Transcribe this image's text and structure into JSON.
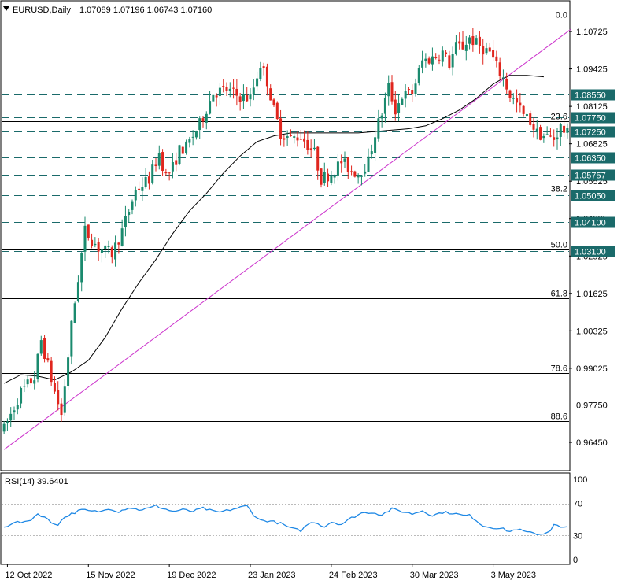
{
  "header": {
    "symbol": "EURUSD,Daily",
    "ohlc": "1.07089 1.07196 1.06743 1.07160"
  },
  "colors": {
    "bull": "#1a8a6e",
    "bear": "#e0261e",
    "ma": "#000000",
    "trendline": "#cc33cc",
    "dash_level": "#1a6a6a",
    "fib": "#000000",
    "rsi": "#1e88e5",
    "label_bg": "#1a6a6a",
    "label_text": "#ffffff"
  },
  "icons": {
    "symbol_toggle": "triangle-down-icon"
  },
  "chart_data": [
    {
      "type": "candlestick",
      "name": "EURUSD,Daily",
      "title": "EURUSD,Daily",
      "ylim": [
        0.96,
        1.1115
      ],
      "price_ticks": [
        "1.10725",
        "1.09425",
        "1.08125",
        "1.06825",
        "1.05525",
        "1.04225",
        "1.02925",
        "1.01625",
        "1.00325",
        "0.99025",
        "0.97750",
        "0.96450"
      ],
      "price_tick_values": [
        1.10725,
        1.09425,
        1.08125,
        1.06825,
        1.05525,
        1.04225,
        1.02925,
        1.01625,
        1.00325,
        0.99025,
        0.9775,
        0.9645
      ],
      "x_labels": [
        "12 Oct 2022",
        "15 Nov 2022",
        "19 Dec 2022",
        "23 Jan 2023",
        "24 Feb 2023",
        "30 Mar 2023",
        "3 May 2023"
      ],
      "x_label_bars": [
        1,
        25,
        49,
        73,
        97,
        121,
        145
      ],
      "bar_count": 168,
      "price_path": [
        [
          0,
          0.969
        ],
        [
          5,
          0.982
        ],
        [
          9,
          0.987
        ],
        [
          11,
          1.0
        ],
        [
          15,
          0.982
        ],
        [
          17,
          0.974
        ],
        [
          20,
          1.005
        ],
        [
          24,
          1.038
        ],
        [
          28,
          1.032
        ],
        [
          32,
          1.03
        ],
        [
          35,
          1.038
        ],
        [
          39,
          1.052
        ],
        [
          43,
          1.056
        ],
        [
          46,
          1.065
        ],
        [
          48,
          1.057
        ],
        [
          50,
          1.06
        ],
        [
          52,
          1.066
        ],
        [
          54,
          1.067
        ],
        [
          58,
          1.075
        ],
        [
          62,
          1.086
        ],
        [
          66,
          1.087
        ],
        [
          69,
          1.085
        ],
        [
          73,
          1.084
        ],
        [
          76,
          1.096
        ],
        [
          78,
          1.09
        ],
        [
          80,
          1.08
        ],
        [
          82,
          1.072
        ],
        [
          85,
          1.07
        ],
        [
          88,
          1.071
        ],
        [
          92,
          1.065
        ],
        [
          94,
          1.056
        ],
        [
          97,
          1.058
        ],
        [
          100,
          1.062
        ],
        [
          103,
          1.059
        ],
        [
          105,
          1.058
        ],
        [
          108,
          1.062
        ],
        [
          110,
          1.072
        ],
        [
          112,
          1.079
        ],
        [
          114,
          1.088
        ],
        [
          116,
          1.08
        ],
        [
          118,
          1.085
        ],
        [
          121,
          1.086
        ],
        [
          124,
          1.097
        ],
        [
          127,
          1.098
        ],
        [
          130,
          1.1
        ],
        [
          132,
          1.096
        ],
        [
          134,
          1.102
        ],
        [
          136,
          1.102
        ],
        [
          138,
          1.105
        ],
        [
          141,
          1.102
        ],
        [
          144,
          1.1
        ],
        [
          146,
          1.095
        ],
        [
          148,
          1.091
        ],
        [
          150,
          1.085
        ],
        [
          152,
          1.082
        ],
        [
          154,
          1.078
        ],
        [
          156,
          1.076
        ],
        [
          158,
          1.072
        ],
        [
          160,
          1.071
        ],
        [
          163,
          1.07
        ],
        [
          165,
          1.074
        ],
        [
          167,
          1.0716
        ]
      ],
      "sma": [
        [
          0,
          0.985
        ],
        [
          5,
          0.988
        ],
        [
          10,
          0.9875
        ],
        [
          15,
          0.9862
        ],
        [
          20,
          0.989
        ],
        [
          25,
          0.993
        ],
        [
          30,
          1.001
        ],
        [
          35,
          1.011
        ],
        [
          40,
          1.02
        ],
        [
          45,
          1.028
        ],
        [
          50,
          1.037
        ],
        [
          55,
          1.045
        ],
        [
          60,
          1.051
        ],
        [
          65,
          1.058
        ],
        [
          70,
          1.064
        ],
        [
          75,
          1.069
        ],
        [
          80,
          1.071
        ],
        [
          85,
          1.072
        ],
        [
          90,
          1.072
        ],
        [
          95,
          1.072
        ],
        [
          100,
          1.072
        ],
        [
          105,
          1.072
        ],
        [
          110,
          1.0725
        ],
        [
          115,
          1.073
        ],
        [
          120,
          1.0735
        ],
        [
          125,
          1.0745
        ],
        [
          130,
          1.077
        ],
        [
          135,
          1.08
        ],
        [
          140,
          1.084
        ],
        [
          145,
          1.089
        ],
        [
          148,
          1.091
        ],
        [
          150,
          1.092
        ],
        [
          155,
          1.092
        ],
        [
          160,
          1.0915
        ]
      ],
      "trendline": {
        "start": [
          0,
          0.962
        ],
        "end": [
          168,
          1.108
        ]
      },
      "levels": [
        {
          "price": 1.0855,
          "label": "1.08550"
        },
        {
          "price": 1.0775,
          "label": "1.07750"
        },
        {
          "price": 1.0725,
          "label": "1.07250"
        },
        {
          "price": 1.0635,
          "label": "1.06350"
        },
        {
          "price": 1.05757,
          "label": "1.05757"
        },
        {
          "price": 1.0505,
          "label": "1.05050"
        },
        {
          "price": 1.041,
          "label": "1.04100"
        },
        {
          "price": 1.031,
          "label": "1.03100"
        }
      ],
      "fib_levels": [
        {
          "label": "0.0",
          "price": 1.1115
        },
        {
          "label": "23.6",
          "price": 1.076
        },
        {
          "label": "38.2",
          "price": 1.051
        },
        {
          "label": "50.0",
          "price": 1.0315
        },
        {
          "label": "61.8",
          "price": 1.0145
        },
        {
          "label": "78.6",
          "price": 0.9885
        },
        {
          "label": "88.6",
          "price": 0.972
        }
      ]
    },
    {
      "type": "line",
      "name": "RSI(14)",
      "title": "RSI(14) 39.6401",
      "value_label": "RSI(14) 39.6401",
      "ylim": [
        0,
        100
      ],
      "ticks": [
        "100",
        "70",
        "30",
        "0"
      ],
      "tick_values": [
        100,
        70,
        30,
        0
      ],
      "ref_lines": [
        70,
        30
      ],
      "values_path": [
        [
          0,
          40
        ],
        [
          3,
          47
        ],
        [
          6,
          46
        ],
        [
          8,
          50
        ],
        [
          10,
          57
        ],
        [
          12,
          53
        ],
        [
          14,
          46
        ],
        [
          16,
          44
        ],
        [
          18,
          53
        ],
        [
          20,
          57
        ],
        [
          23,
          62
        ],
        [
          26,
          60
        ],
        [
          29,
          60
        ],
        [
          31,
          64
        ],
        [
          34,
          60
        ],
        [
          37,
          65
        ],
        [
          40,
          62
        ],
        [
          43,
          64
        ],
        [
          45,
          67
        ],
        [
          47,
          64
        ],
        [
          50,
          60
        ],
        [
          53,
          62
        ],
        [
          56,
          60
        ],
        [
          59,
          64
        ],
        [
          62,
          60
        ],
        [
          64,
          59
        ],
        [
          67,
          62
        ],
        [
          70,
          65
        ],
        [
          72,
          67
        ],
        [
          74,
          56
        ],
        [
          76,
          49
        ],
        [
          79,
          48
        ],
        [
          82,
          45
        ],
        [
          85,
          39
        ],
        [
          88,
          36
        ],
        [
          90,
          44
        ],
        [
          92,
          47
        ],
        [
          95,
          41
        ],
        [
          97,
          47
        ],
        [
          100,
          44
        ],
        [
          103,
          52
        ],
        [
          106,
          58
        ],
        [
          109,
          59
        ],
        [
          112,
          56
        ],
        [
          115,
          63
        ],
        [
          118,
          60
        ],
        [
          121,
          57
        ],
        [
          124,
          61
        ],
        [
          127,
          55
        ],
        [
          130,
          59
        ],
        [
          133,
          58
        ],
        [
          136,
          55
        ],
        [
          138,
          55
        ],
        [
          140,
          49
        ],
        [
          142,
          42
        ],
        [
          145,
          40
        ],
        [
          148,
          38
        ],
        [
          150,
          35
        ],
        [
          152,
          38
        ],
        [
          155,
          34
        ],
        [
          158,
          32
        ],
        [
          160,
          32
        ],
        [
          162,
          37
        ],
        [
          163,
          44
        ],
        [
          165,
          40
        ],
        [
          167,
          40
        ]
      ],
      "last_value": 39.6401
    }
  ]
}
